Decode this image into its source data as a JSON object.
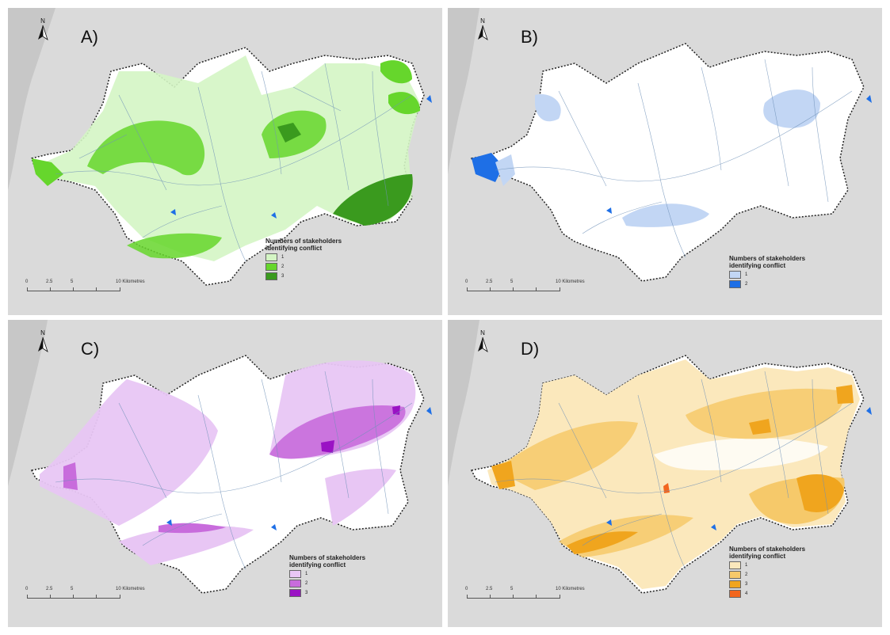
{
  "panels": [
    {
      "label": "A)",
      "north": "N",
      "legend_title": "Numbers of stakeholders identifying conflict",
      "legend_items": [
        {
          "value": "1",
          "color": "#d4f5c4"
        },
        {
          "value": "2",
          "color": "#66d62c"
        },
        {
          "value": "3",
          "color": "#3a9a1e"
        }
      ],
      "scale": {
        "labels": [
          "0",
          "2.5",
          "5",
          "10 Kilometres"
        ]
      }
    },
    {
      "label": "B)",
      "north": "N",
      "legend_title": "Numbers of stakeholders identifying conflict",
      "legend_items": [
        {
          "value": "1",
          "color": "#c2d6f4"
        },
        {
          "value": "2",
          "color": "#1e6fe6"
        }
      ],
      "scale": {
        "labels": [
          "0",
          "2.5",
          "5",
          "10 Kilometres"
        ]
      }
    },
    {
      "label": "C)",
      "north": "N",
      "legend_title": "Numbers of stakeholders identifying conflict",
      "legend_items": [
        {
          "value": "1",
          "color": "#e8c6f4"
        },
        {
          "value": "2",
          "color": "#c86cdc"
        },
        {
          "value": "3",
          "color": "#9a12c4"
        }
      ],
      "scale": {
        "labels": [
          "0",
          "2.5",
          "5",
          "10 Kilometres"
        ]
      }
    },
    {
      "label": "D)",
      "north": "N",
      "legend_title": "Numbers of stakeholders identifying conflict",
      "legend_items": [
        {
          "value": "1",
          "color": "#fbe8bc"
        },
        {
          "value": "2",
          "color": "#f6c96a"
        },
        {
          "value": "3",
          "color": "#f0a51e"
        },
        {
          "value": "4",
          "color": "#f2661e"
        }
      ],
      "scale": {
        "labels": [
          "0",
          "2.5",
          "5",
          "10 Kilometres"
        ]
      }
    }
  ]
}
